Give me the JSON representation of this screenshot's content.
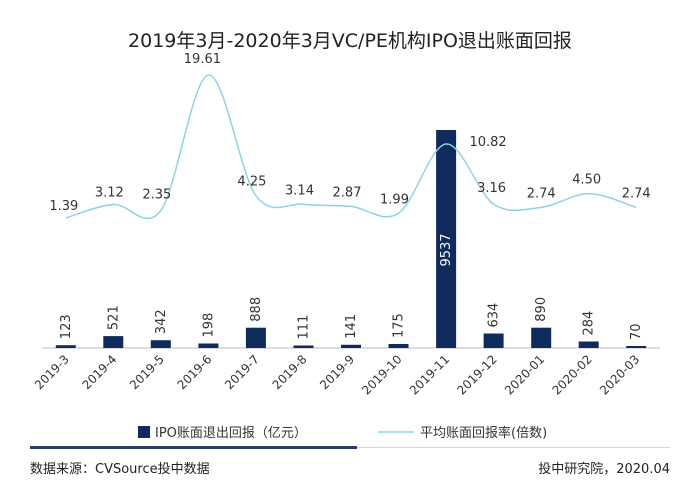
{
  "chart_data": {
    "type": "bar+line",
    "title": "2019年3月-2020年3月VC/PE机构IPO退出账面回报",
    "categories": [
      "2019-3",
      "2019-4",
      "2019-5",
      "2019-6",
      "2019-7",
      "2019-8",
      "2019-9",
      "2019-10",
      "2019-11",
      "2019-12",
      "2020-01",
      "2020-02",
      "2020-03"
    ],
    "series": [
      {
        "name": "IPO账面退出回报（亿元）",
        "type": "bar",
        "values": [
          123,
          521,
          342,
          198,
          888,
          111,
          141,
          175,
          9537,
          634,
          890,
          284,
          70
        ],
        "labels": [
          "123",
          "521",
          "342",
          "198",
          "888",
          "111",
          "141",
          "175",
          "9537",
          "634",
          "890",
          "284",
          "70"
        ]
      },
      {
        "name": "平均账面回报率(倍数)",
        "type": "line",
        "values": [
          1.39,
          3.12,
          2.35,
          19.61,
          4.25,
          3.14,
          2.87,
          1.99,
          10.82,
          3.16,
          2.74,
          4.5,
          2.74
        ],
        "labels": [
          "1.39",
          "3.12",
          "2.35",
          "19.61",
          "4.25",
          "3.14",
          "2.87",
          "1.99",
          "10.82",
          "3.16",
          "2.74",
          "4.50",
          "2.74"
        ]
      }
    ],
    "bar_ylim": [
      0,
      10000
    ],
    "line_ylim": [
      -20,
      22
    ],
    "legend_position": "bottom"
  },
  "colors": {
    "bar": "#0e2b5c",
    "line": "#8fd3e3",
    "axis": "#bbbbbb",
    "divider": "#24406b"
  },
  "footer": {
    "source": "数据来源：CVSource投中数据",
    "credit": "投中研究院，2020.04"
  }
}
